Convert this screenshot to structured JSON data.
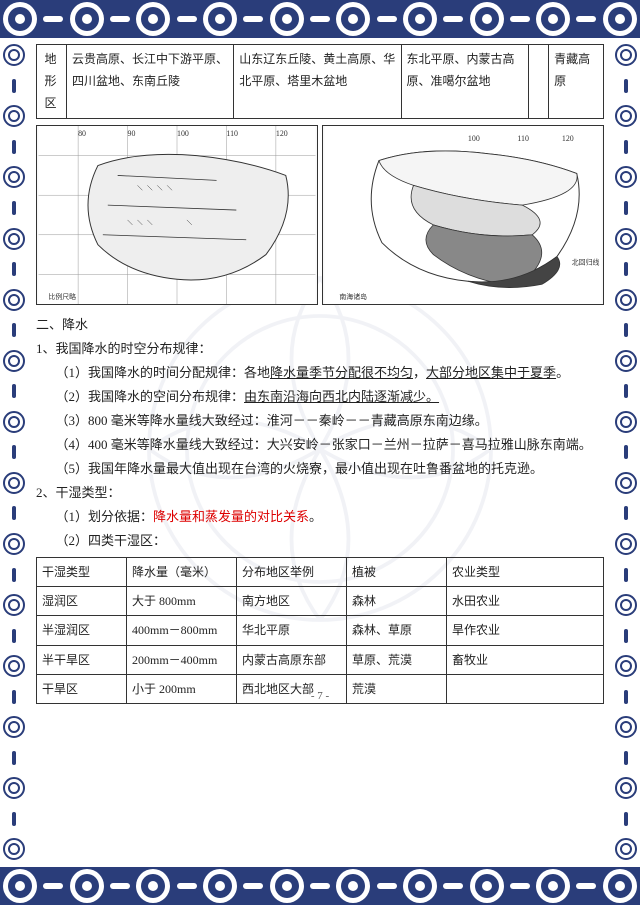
{
  "terrain_table": {
    "row_label": "地形区",
    "cells": [
      "云贵高原、长江中下游平原、四川盆地、东南丘陵",
      "山东辽东丘陵、黄土高原、华北平原、塔里木盆地",
      "东北平原、内蒙古高原、准噶尔盆地",
      "",
      "青藏高　原"
    ]
  },
  "maps": {
    "left_alt": "中国温度带分布图",
    "right_alt": "中国干湿地区分布图"
  },
  "precip": {
    "heading": "二、降水",
    "p1_title": "1、我国降水的时空分布规律：",
    "p1_1_pre": "（1）我国降水的时间分配规律：各地",
    "p1_1_u1": "降水量季节分配很不均匀",
    "p1_1_mid": "，",
    "p1_1_u2": "大部分地区集中于夏季",
    "p1_1_end": "。",
    "p1_2_pre": "（2）我国降水的空间分布规律：",
    "p1_2_u": "由东南沿海向西北内陆逐渐减少。",
    "p1_3": "（3）800 毫米等降水量线大致经过：淮河－－秦岭－－青藏高原东南边缘。",
    "p1_4": "（4）400 毫米等降水量线大致经过：大兴安岭－张家口－兰州－拉萨－喜马拉雅山脉东南端。",
    "p1_5": "（5）我国年降水量最大值出现在台湾的火烧寮，最小值出现在吐鲁番盆地的托克逊。",
    "p2_title": "2、干湿类型：",
    "p2_1_pre": "（1）划分依据：",
    "p2_1_red": "降水量和蒸发量的对比关系",
    "p2_1_end": "。",
    "p2_2": "（2）四类干湿区："
  },
  "zone_table": {
    "headers": [
      "干湿类型",
      "降水量（毫米）",
      "分布地区举例",
      "植被",
      "农业类型"
    ],
    "rows": [
      [
        "湿润区",
        "大于 800mm",
        "南方地区",
        "森林",
        "水田农业"
      ],
      [
        "半湿润区",
        "400mm－800mm",
        "华北平原",
        "森林、草原",
        "旱作农业"
      ],
      [
        "半干旱区",
        "200mm－400mm",
        "内蒙古高原东部",
        "草原、荒漠",
        "畜牧业"
      ],
      [
        "干旱区",
        "小于 200mm",
        "西北地区大部",
        "荒漠",
        ""
      ]
    ],
    "col_widths": [
      "90px",
      "110px",
      "110px",
      "100px",
      "auto"
    ]
  },
  "page_number": "- 7 -"
}
